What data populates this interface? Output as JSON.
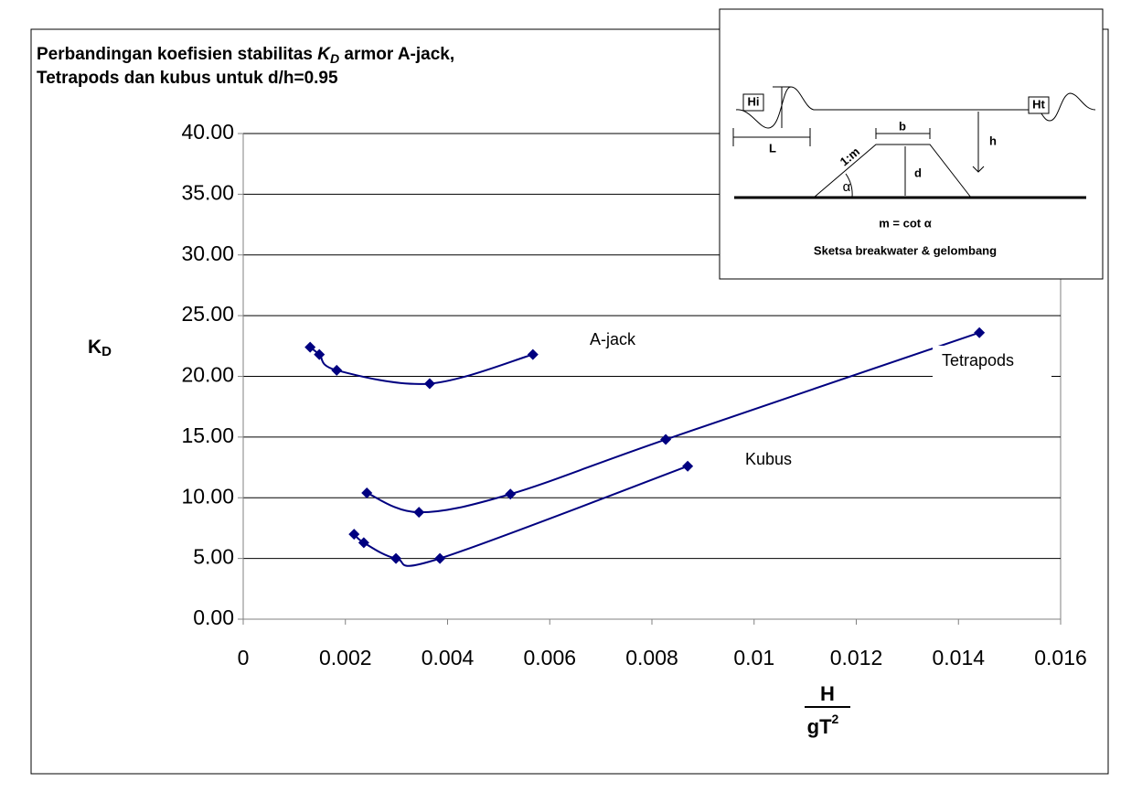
{
  "chart_data": {
    "type": "scatter-smooth",
    "title": {
      "prefix": "Perbandingan koefisien stabilitas ",
      "symbol": "K",
      "subscript": "D",
      "suffix": " armor A-jack,",
      "line2": "Tetrapods dan kubus untuk d/h=0.95"
    },
    "y_label": {
      "symbol": "K",
      "subscript": "D"
    },
    "x_label": {
      "numerator": "H",
      "denominator": "gT",
      "superscript": "2"
    },
    "xlim": [
      0,
      0.016
    ],
    "xticks": [
      0,
      0.002,
      0.004,
      0.006,
      0.008,
      0.01,
      0.012,
      0.014,
      0.016
    ],
    "ylim": [
      0,
      40
    ],
    "yticks": [
      {
        "value": 0,
        "label": "0.00"
      },
      {
        "value": 5,
        "label": "5.00"
      },
      {
        "value": 10,
        "label": "10.00"
      },
      {
        "value": 15,
        "label": "15.00"
      },
      {
        "value": 20,
        "label": "20.00"
      },
      {
        "value": 25,
        "label": "25.00"
      },
      {
        "value": 30,
        "label": "30.00"
      },
      {
        "value": 35,
        "label": "35.00"
      },
      {
        "value": 40,
        "label": "40.00"
      }
    ],
    "grid": true,
    "series": [
      {
        "name": "A-jack",
        "color": "#000080",
        "x": [
          0.00131,
          0.00149,
          0.00183,
          0.00365,
          0.00567
        ],
        "values": [
          22.4,
          21.8,
          20.5,
          19.4,
          21.8
        ]
      },
      {
        "name": "Tetrapods",
        "color": "#000080",
        "x": [
          0.00242,
          0.00344,
          0.00523,
          0.00827,
          0.01441
        ],
        "values": [
          10.4,
          8.8,
          10.3,
          14.8,
          23.6
        ]
      },
      {
        "name": "Kubus",
        "color": "#000080",
        "x": [
          0.00217,
          0.00236,
          0.00299,
          0.00385,
          0.0087
        ],
        "values": [
          7.0,
          6.3,
          5.0,
          5.0,
          12.6
        ]
      }
    ],
    "inset": {
      "hi": "Hi",
      "l": "L",
      "b": "b",
      "slope": "1:m",
      "alpha": "α",
      "d": "d",
      "h": "h",
      "ht": "Ht",
      "formula": "m = cot α",
      "caption": "Sketsa breakwater & gelombang"
    }
  }
}
